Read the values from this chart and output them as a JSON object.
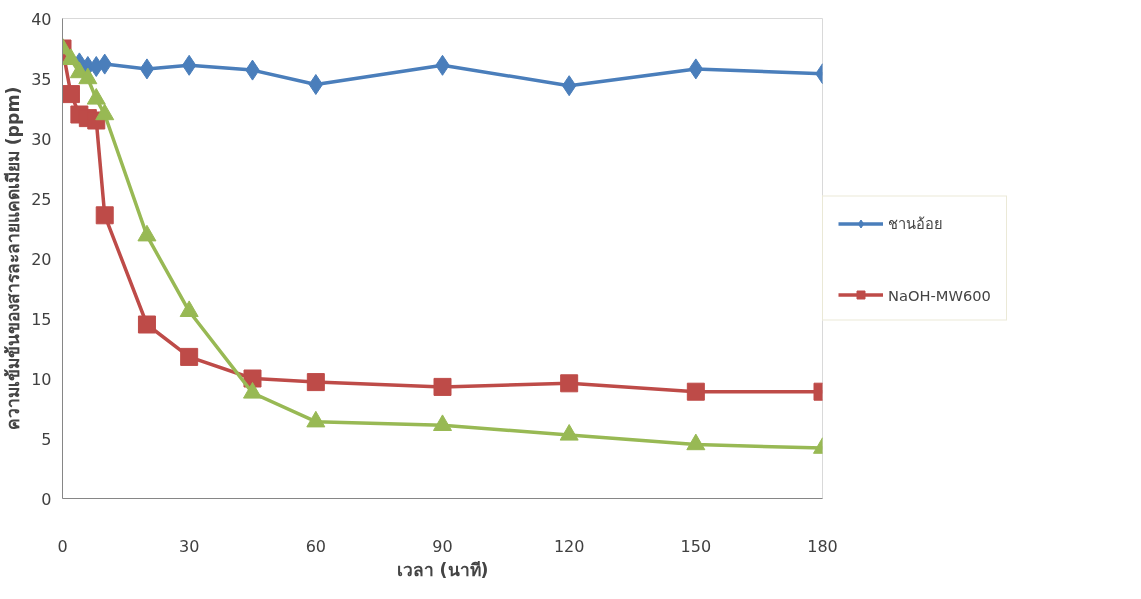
{
  "chart_data": {
    "type": "line",
    "xlabel": "เวลา (นาที)",
    "ylabel": "ความเข้มข้นของสารละลายแคดเมียม (ppm)",
    "x": [
      0,
      2,
      4,
      6,
      8,
      10,
      20,
      30,
      45,
      60,
      90,
      120,
      150,
      180
    ],
    "xlim": [
      0,
      180
    ],
    "xticks": [
      0,
      30,
      60,
      90,
      120,
      150,
      180
    ],
    "ylim": [
      0,
      40
    ],
    "yticks": [
      0,
      5,
      10,
      15,
      20,
      25,
      30,
      35,
      40
    ],
    "grid": false,
    "legend": "right",
    "series": [
      {
        "name": "ชานอ้อย",
        "color": "#4a7ebb",
        "marker": "diamond",
        "values": [
          37.5,
          null,
          36.3,
          36.0,
          36.0,
          36.2,
          35.8,
          36.1,
          35.7,
          34.5,
          36.1,
          34.4,
          35.8,
          35.4
        ]
      },
      {
        "name": "NaOH-MW600",
        "color": "#be4b48",
        "marker": "square",
        "values": [
          37.5,
          33.7,
          32.0,
          31.7,
          31.5,
          23.6,
          14.5,
          11.8,
          10.0,
          9.7,
          9.3,
          9.6,
          8.9,
          8.9
        ]
      },
      {
        "color": "#98b954",
        "marker": "triangle",
        "values": [
          37.5,
          36.6,
          35.5,
          35.0,
          33.3,
          32.0,
          21.9,
          15.6,
          8.8,
          6.4,
          6.1,
          5.3,
          4.5,
          4.2
        ]
      }
    ]
  }
}
